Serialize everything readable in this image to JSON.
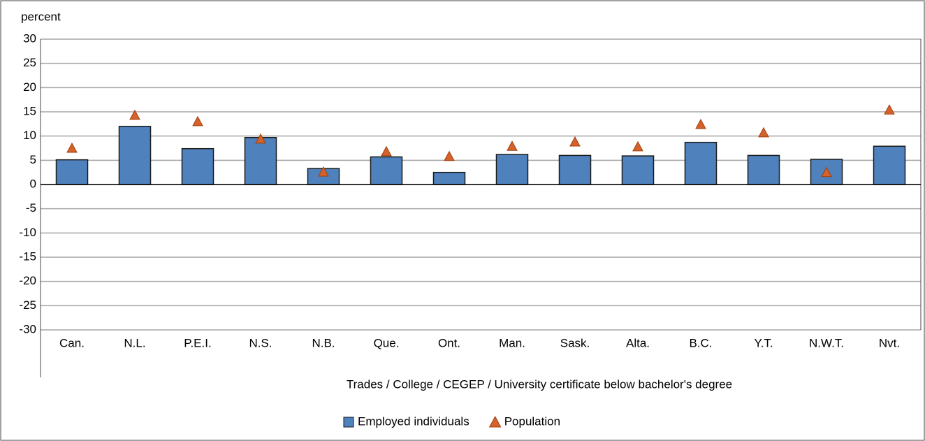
{
  "chart_data": {
    "type": "bar",
    "y_label": "percent",
    "x_label": "Trades / College / CEGEP / University certificate below bachelor's degree",
    "categories": [
      "Can.",
      "N.L.",
      "P.E.I.",
      "N.S.",
      "N.B.",
      "Que.",
      "Ont.",
      "Man.",
      "Sask.",
      "Alta.",
      "B.C.",
      "Y.T.",
      "N.W.T.",
      "Nvt."
    ],
    "series": [
      {
        "name": "Employed individuals",
        "type": "bar",
        "color": "#4f81bd",
        "values": [
          5.1,
          12.0,
          7.4,
          9.7,
          3.3,
          5.7,
          2.5,
          6.2,
          6.0,
          5.9,
          8.7,
          6.0,
          5.2,
          7.9
        ]
      },
      {
        "name": "Population",
        "type": "triangle",
        "color": "#d4622a",
        "values": [
          7.5,
          14.3,
          13.0,
          9.4,
          2.6,
          6.8,
          5.8,
          7.9,
          8.8,
          7.8,
          12.4,
          10.7,
          2.5,
          15.4
        ]
      }
    ],
    "ylim": [
      -30,
      30
    ],
    "yticks": [
      -30,
      -25,
      -20,
      -15,
      -10,
      -5,
      0,
      5,
      10,
      15,
      20,
      25,
      30
    ],
    "grid": true,
    "legend": "bottom"
  }
}
